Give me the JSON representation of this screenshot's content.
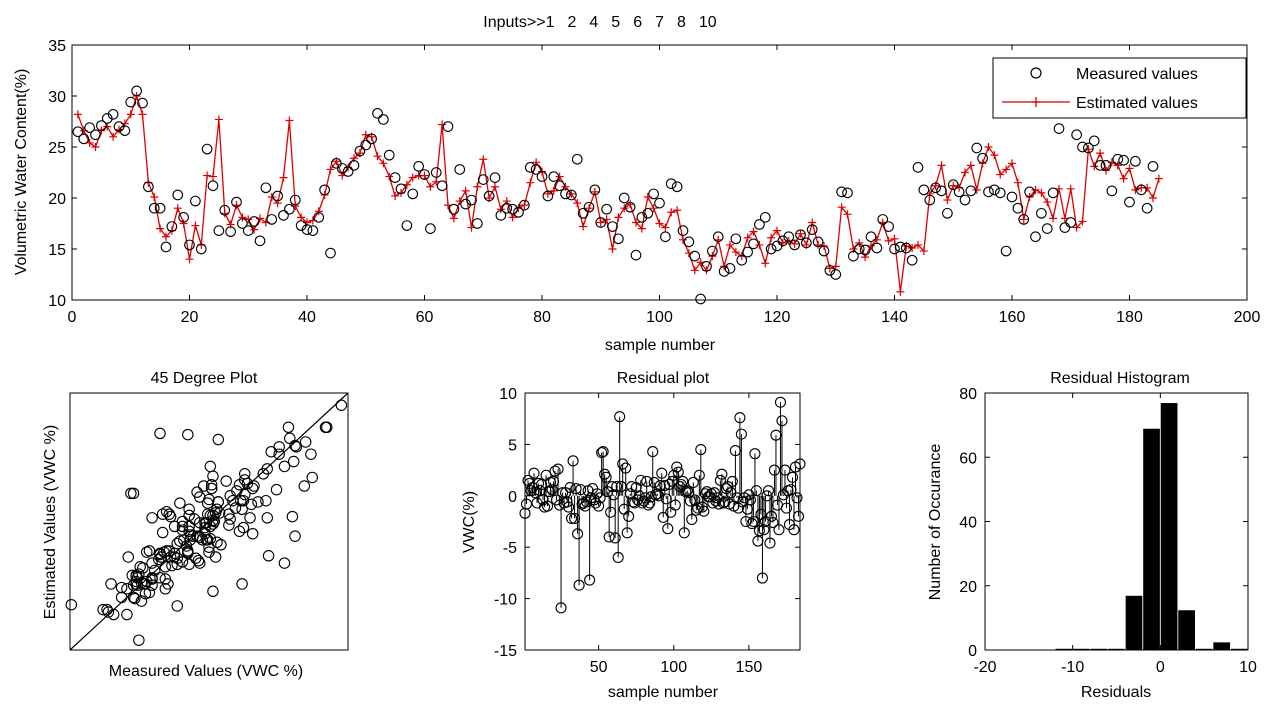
{
  "header": {
    "prefix": "Inputs>>",
    "inputs": [
      "1",
      "2",
      "4",
      "5",
      "6",
      "7",
      "8",
      "10"
    ]
  },
  "colors": {
    "measured": "#000000",
    "estimated": "#dd0000",
    "background": "#ffffff"
  },
  "chart_data": [
    {
      "id": "timeseries",
      "type": "line",
      "title": "",
      "xlabel": "sample number",
      "ylabel": "Volumetric Water Content(%)",
      "xlim": [
        0,
        200
      ],
      "ylim": [
        10,
        35
      ],
      "xticks": [
        0,
        20,
        40,
        60,
        80,
        100,
        120,
        140,
        160,
        180,
        200
      ],
      "yticks": [
        10,
        15,
        20,
        25,
        30,
        35
      ],
      "legend": {
        "placement": "top-right",
        "entries": [
          "Measured values",
          "Estimated values"
        ]
      },
      "series": [
        {
          "name": "Measured values",
          "marker": "circle",
          "values": [
            26.5,
            25.8,
            26.9,
            26.2,
            27.1,
            27.8,
            28.2,
            27.0,
            26.6,
            29.4,
            30.5,
            29.3,
            21.1,
            19.0,
            19.0,
            15.2,
            17.2,
            20.3,
            18.1,
            15.4,
            19.7,
            15.0,
            24.8,
            21.2,
            16.8,
            18.8,
            16.7,
            19.6,
            17.5,
            16.8,
            17.7,
            15.8,
            21.0,
            17.9,
            20.2,
            18.3,
            18.9,
            19.8,
            17.3,
            16.9,
            16.8,
            18.1,
            20.8,
            14.6,
            23.4,
            22.9,
            22.6,
            23.2,
            24.6,
            25.2,
            25.8,
            28.3,
            27.7,
            24.2,
            22.0,
            20.9,
            17.3,
            20.4,
            23.1,
            22.3,
            17.0,
            22.5,
            21.2,
            27.0,
            18.9,
            22.8,
            19.4,
            19.8,
            17.5,
            21.8,
            20.2,
            22.0,
            18.3,
            19.0,
            18.9,
            18.6,
            19.3,
            23.0,
            22.8,
            22.1,
            20.2,
            22.1,
            21.2,
            20.4,
            20.3,
            23.8,
            18.5,
            19.1,
            20.8,
            17.6,
            18.9,
            17.2,
            16.0,
            20.0,
            19.1,
            14.4,
            18.1,
            18.5,
            20.4,
            19.5,
            16.2,
            21.4,
            21.1,
            16.8,
            15.7,
            14.3,
            10.1,
            13.3,
            14.8,
            16.2,
            12.8,
            13.1,
            16.0,
            13.9,
            14.7,
            15.5,
            17.4,
            18.1,
            15.0,
            15.3,
            15.8,
            16.2,
            15.4,
            16.4,
            15.6,
            16.9,
            15.7,
            14.8,
            12.9,
            12.5,
            20.6,
            20.5,
            14.3,
            15.0,
            14.9,
            16.2,
            15.1,
            17.9,
            17.2,
            15.0,
            15.2,
            15.1,
            13.9,
            23.0,
            20.8,
            19.8,
            21.0,
            20.7,
            18.5,
            21.3,
            20.6,
            19.8,
            20.7,
            24.9,
            23.9,
            20.6,
            20.8,
            20.5,
            14.8,
            20.1,
            19.0,
            17.9,
            20.6,
            16.2,
            18.5,
            17.0,
            20.5,
            26.8,
            17.1,
            17.6,
            26.2,
            25.0,
            24.9,
            25.6,
            23.2,
            23.2,
            20.7,
            23.8,
            23.7,
            19.6,
            23.6,
            20.8,
            19.0,
            23.1
          ]
        },
        {
          "name": "Estimated values",
          "marker": "plus",
          "values": [
            28.2,
            26.6,
            25.4,
            25.0,
            26.6,
            27.0,
            26.0,
            26.7,
            27.3,
            28.2,
            30.0,
            28.2,
            21.5,
            20.1,
            17.0,
            16.2,
            16.8,
            19.0,
            17.5,
            14.0,
            17.3,
            15.4,
            22.2,
            22.1,
            27.7,
            18.5,
            17.4,
            19.3,
            18.1,
            17.9,
            16.9,
            18.0,
            17.6,
            20.1,
            19.5,
            22.0,
            27.6,
            19.2,
            18.1,
            17.6,
            17.8,
            18.7,
            20.3,
            22.8,
            23.6,
            22.2,
            23.0,
            23.9,
            24.4,
            26.2,
            26.0,
            24.1,
            23.4,
            22.1,
            20.2,
            20.5,
            21.3,
            22.0,
            22.2,
            22.2,
            21.1,
            21.6,
            27.2,
            19.3,
            18.0,
            19.7,
            20.7,
            17.1,
            21.1,
            23.8,
            20.0,
            21.1,
            18.9,
            19.7,
            18.1,
            19.0,
            19.3,
            21.5,
            23.5,
            22.6,
            20.4,
            20.7,
            22.1,
            21.1,
            20.4,
            19.5,
            17.2,
            19.0,
            20.6,
            17.6,
            17.9,
            15.0,
            18.1,
            19.0,
            19.4,
            17.6,
            17.0,
            20.1,
            19.0,
            17.5,
            17.1,
            18.6,
            18.8,
            15.9,
            14.6,
            12.9,
            13.7,
            12.9,
            14.3,
            15.9,
            13.3,
            15.4,
            14.7,
            14.3,
            16.1,
            16.7,
            15.4,
            13.6,
            16.1,
            16.8,
            15.6,
            15.8,
            15.5,
            16.5,
            15.4,
            17.6,
            15.4,
            15.3,
            13.1,
            13.3,
            19.1,
            18.4,
            15.0,
            15.6,
            14.2,
            15.3,
            15.9,
            17.6,
            15.8,
            16.0,
            10.8,
            15.3,
            15.1,
            15.4,
            14.8,
            20.4,
            21.2,
            23.2,
            19.8,
            21.2,
            21.0,
            22.5,
            23.2,
            20.8,
            23.4,
            25.0,
            24.2,
            22.3,
            22.8,
            23.4,
            21.5,
            17.9,
            20.1,
            20.8,
            20.5,
            19.6,
            18.0,
            20.9,
            18.0,
            20.9,
            17.1,
            17.7,
            24.8,
            23.1,
            24.4,
            22.7,
            23.5,
            23.2,
            21.9,
            22.9,
            20.8,
            21.0,
            21.0,
            20.0,
            21.9
          ]
        }
      ]
    },
    {
      "id": "scatter45",
      "type": "scatter",
      "title": "45 Degree Plot",
      "xlabel": "Measured Values (VWC %)",
      "ylabel": "Estimated Values (VWC %)",
      "xlim": [
        10,
        31
      ],
      "ylim": [
        10,
        31
      ],
      "xticks": [],
      "yticks": [],
      "reference_line": "y = x"
    },
    {
      "id": "residual",
      "type": "scatter",
      "title": "Residual plot",
      "xlabel": "sample number",
      "ylabel": "VWC(%)",
      "xlim": [
        1,
        184
      ],
      "ylim": [
        -15,
        10
      ],
      "xticks": [
        50,
        100,
        150
      ],
      "yticks": [
        -15,
        -10,
        -5,
        0,
        5,
        10
      ],
      "style": "stem"
    },
    {
      "id": "histogram",
      "type": "bar",
      "title": "Residual Histogram",
      "xlabel": "Residuals",
      "ylabel": "Number of Occurance",
      "xlim": [
        -20,
        10
      ],
      "ylim": [
        0,
        80
      ],
      "xticks": [
        -20,
        -10,
        0,
        10
      ],
      "yticks": [
        0,
        20,
        40,
        60,
        80
      ],
      "bin_width": 2,
      "bin_centers": [
        -11,
        -9,
        -7,
        -5,
        -3,
        -1,
        1,
        3,
        5,
        7,
        9
      ],
      "values": [
        0.5,
        0.5,
        0.5,
        0.5,
        17,
        69,
        77,
        12.5,
        0.5,
        2.5,
        0.5
      ]
    }
  ]
}
